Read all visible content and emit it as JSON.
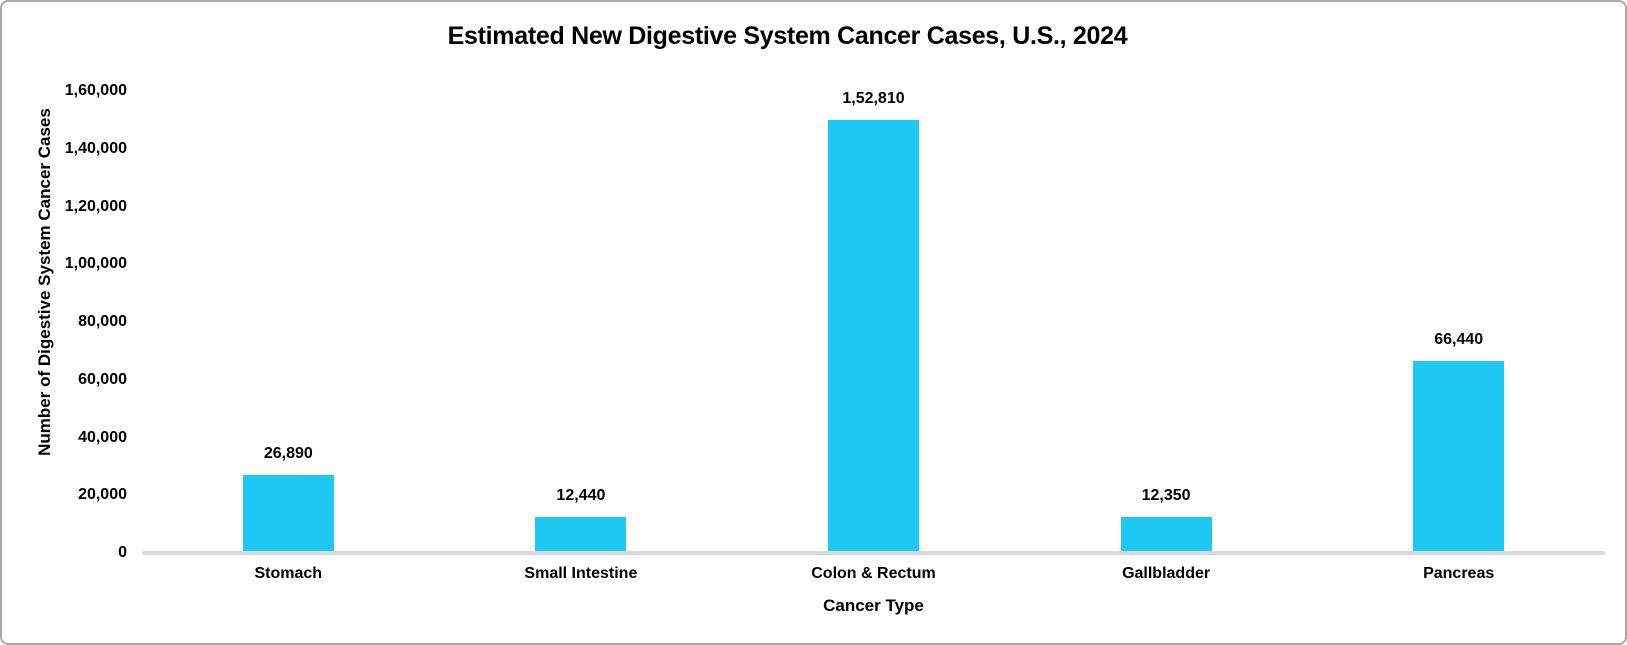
{
  "chart_data": {
    "type": "bar",
    "title": "Estimated New Digestive System Cancer Cases, U.S., 2024",
    "xlabel": "Cancer Type",
    "ylabel": "Number of Digestive System Cancer Cases",
    "categories": [
      "Stomach",
      "Small Intestine",
      "Colon & Rectum",
      "Gallbladder",
      "Pancreas"
    ],
    "values": [
      26890,
      12440,
      152810,
      12350,
      66440
    ],
    "value_labels": [
      "26,890",
      "12,440",
      "1,52,810",
      "12,350",
      "66,440"
    ],
    "ylim": [
      0,
      160000
    ],
    "ytick_step": 20000,
    "ytick_labels": [
      "0",
      "20,000",
      "40,000",
      "60,000",
      "80,000",
      "1,00,000",
      "1,20,000",
      "1,40,000",
      "1,60,000"
    ],
    "grid": false,
    "legend": false,
    "bar_color": "#1dc8f2",
    "axis_line_color": "#d9d9d9"
  },
  "colors": {
    "background": "#ffffff",
    "frame_border": "#a9a9a9",
    "text": "#000000"
  }
}
